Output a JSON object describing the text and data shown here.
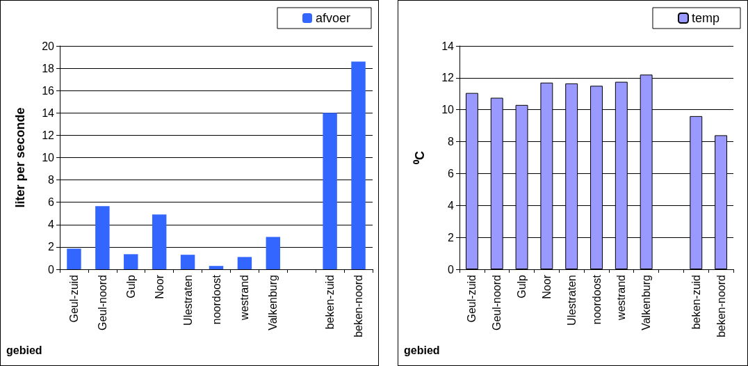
{
  "chart_data": [
    {
      "type": "bar",
      "xlabel": "gebied",
      "ylabel": "liter per seconde",
      "categories": [
        "Geul-zuid",
        "Geul-noord",
        "Gulp",
        "Noor",
        "Ulestraten",
        "noordoost",
        "westrand",
        "Valkenburg",
        null,
        "beken-zuid",
        "beken-noord"
      ],
      "series": [
        {
          "name": "afvoer",
          "color": "#3366ff",
          "values": [
            1.85,
            5.65,
            1.35,
            4.9,
            1.3,
            0.3,
            1.1,
            2.9,
            null,
            14.0,
            18.6
          ]
        }
      ],
      "ylim": [
        0,
        20
      ],
      "yticks": [
        0,
        2,
        4,
        6,
        8,
        10,
        12,
        14,
        16,
        18,
        20
      ],
      "grid": "y",
      "legend": "top right"
    },
    {
      "type": "bar",
      "xlabel": "gebied",
      "ylabel": "⁰C",
      "categories": [
        "Geul-zuid",
        "Geul-noord",
        "Gulp",
        "Noor",
        "Ulestraten",
        "noordoost",
        "westrand",
        "Valkenburg",
        null,
        "beken-zuid",
        "beken-noord"
      ],
      "series": [
        {
          "name": "temp",
          "color": "#9999ff",
          "values": [
            11.05,
            10.75,
            10.3,
            11.7,
            11.65,
            11.5,
            11.75,
            12.2,
            null,
            9.6,
            8.4
          ]
        }
      ],
      "ylim": [
        0,
        14
      ],
      "yticks": [
        0,
        2,
        4,
        6,
        8,
        10,
        12,
        14
      ],
      "grid": "y",
      "legend": "top right"
    }
  ]
}
